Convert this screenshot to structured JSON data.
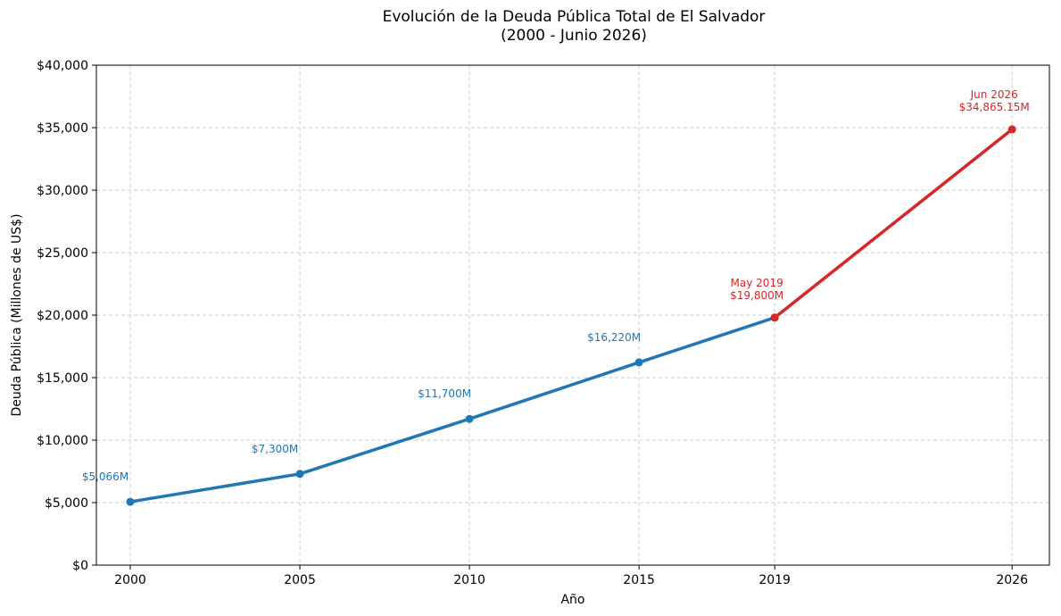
{
  "chart_data": {
    "type": "line",
    "title": "Evolución de la Deuda Pública Total de El Salvador",
    "subtitle": "(2000 - Junio 2026)",
    "xlabel": "Año",
    "ylabel": "Deuda Pública (Millones de US$)",
    "xlim": [
      1999,
      2027.1
    ],
    "ylim": [
      0,
      40000
    ],
    "xticks": [
      2000,
      2005,
      2010,
      2015,
      2019,
      2026
    ],
    "xtick_labels": [
      "2000",
      "2005",
      "2010",
      "2015",
      "2019",
      "2026"
    ],
    "yticks": [
      0,
      5000,
      10000,
      15000,
      20000,
      25000,
      30000,
      35000,
      40000
    ],
    "ytick_labels": [
      "$0",
      "$5,000",
      "$10,000",
      "$15,000",
      "$20,000",
      "$25,000",
      "$30,000",
      "$35,000",
      "$40,000"
    ],
    "grid": true,
    "series": [
      {
        "color": "#1f77b4",
        "points": [
          {
            "x": 2000,
            "y": 5066,
            "label": "$5,066M"
          },
          {
            "x": 2005,
            "y": 7300,
            "label": "$7,300M"
          },
          {
            "x": 2010,
            "y": 11700,
            "label": "$11,700M"
          },
          {
            "x": 2015,
            "y": 16220,
            "label": "$16,220M"
          },
          {
            "x": 2019,
            "y": 19800
          }
        ]
      },
      {
        "color": "#d62728",
        "points": [
          {
            "x": 2019,
            "y": 19800
          },
          {
            "x": 2026,
            "y": 34865.15
          }
        ]
      }
    ],
    "annotations": [
      {
        "x": 2019,
        "y": 19800,
        "lines": [
          "May 2019",
          "$19,800M"
        ],
        "color": "#d62728"
      },
      {
        "x": 2026,
        "y": 34865.15,
        "lines": [
          "Jun 2026",
          "$34,865.15M"
        ],
        "color": "#d62728"
      }
    ]
  }
}
